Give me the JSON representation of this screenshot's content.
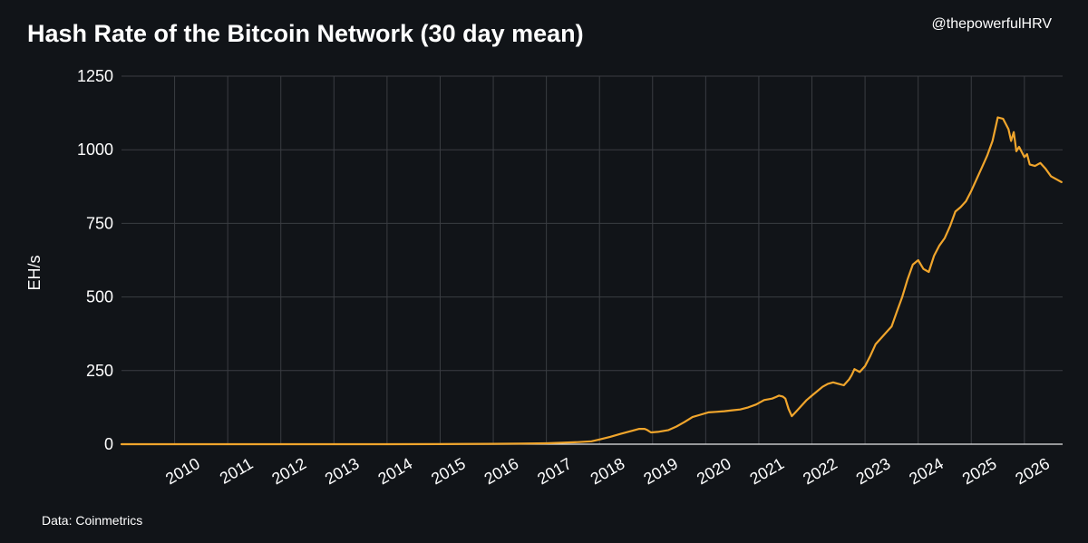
{
  "header": {
    "title": "Hash Rate of the Bitcoin Network (30 day mean)",
    "handle": "@thepowerfulHRV"
  },
  "footer": {
    "source": "Data: Coinmetrics"
  },
  "colors": {
    "background": "#111418",
    "grid": "#3a3d42",
    "line": "#f0a52c",
    "text": "#ffffff"
  },
  "chart_data": {
    "type": "line",
    "title": "Hash Rate of the Bitcoin Network (30 day mean)",
    "xlabel": "",
    "ylabel": "EH/s",
    "xlim": [
      2009.0,
      2026.72
    ],
    "ylim": [
      0,
      1250
    ],
    "yticks": [
      0,
      250,
      500,
      750,
      1000,
      1250
    ],
    "xticks": [
      "2010",
      "2011",
      "2012",
      "2013",
      "2014",
      "2015",
      "2016",
      "2017",
      "2018",
      "2019",
      "2020",
      "2021",
      "2022",
      "2023",
      "2024",
      "2025",
      "2026"
    ],
    "grid": true,
    "series": [
      {
        "x": [
          2009.0,
          2010.0,
          2011.0,
          2012.0,
          2013.0,
          2014.0,
          2015.0,
          2016.0,
          2016.5,
          2017.0,
          2017.3,
          2017.6,
          2017.85,
          2018.0,
          2018.2,
          2018.4,
          2018.6,
          2018.75,
          2018.85,
          2018.9,
          2018.97,
          2019.1,
          2019.3,
          2019.45,
          2019.6,
          2019.75,
          2019.9,
          2020.05,
          2020.2,
          2020.35,
          2020.5,
          2020.65,
          2020.8,
          2020.95,
          2021.1,
          2021.25,
          2021.32,
          2021.38,
          2021.45,
          2021.5,
          2021.56,
          2021.62,
          2021.7,
          2021.8,
          2021.9,
          2022.0,
          2022.1,
          2022.2,
          2022.3,
          2022.4,
          2022.5,
          2022.6,
          2022.7,
          2022.75,
          2022.8,
          2022.9,
          2023.0,
          2023.1,
          2023.2,
          2023.3,
          2023.4,
          2023.5,
          2023.6,
          2023.7,
          2023.8,
          2023.9,
          2024.0,
          2024.1,
          2024.2,
          2024.3,
          2024.4,
          2024.5,
          2024.6,
          2024.7,
          2024.8,
          2024.9,
          2025.0,
          2025.1,
          2025.2,
          2025.3,
          2025.4,
          2025.5,
          2025.6,
          2025.7,
          2025.75,
          2025.8,
          2025.85,
          2025.9,
          2026.0,
          2026.05,
          2026.1,
          2026.2,
          2026.3,
          2026.4,
          2026.5,
          2026.6,
          2026.7
        ],
        "y": [
          0,
          0,
          0,
          0,
          0.02,
          0.1,
          0.4,
          1.3,
          1.8,
          3,
          5,
          7,
          10,
          16,
          25,
          35,
          45,
          52,
          52,
          48,
          40,
          42,
          48,
          60,
          75,
          92,
          100,
          108,
          110,
          112,
          115,
          118,
          125,
          135,
          150,
          155,
          160,
          165,
          162,
          155,
          120,
          95,
          110,
          130,
          150,
          165,
          180,
          195,
          205,
          210,
          205,
          200,
          220,
          235,
          255,
          245,
          265,
          300,
          340,
          360,
          380,
          400,
          450,
          500,
          560,
          610,
          625,
          595,
          585,
          640,
          675,
          700,
          740,
          790,
          805,
          825,
          860,
          900,
          940,
          980,
          1030,
          1110,
          1105,
          1070,
          1030,
          1060,
          995,
          1010,
          975,
          985,
          950,
          945,
          955,
          935,
          910,
          900,
          890
        ]
      }
    ]
  }
}
